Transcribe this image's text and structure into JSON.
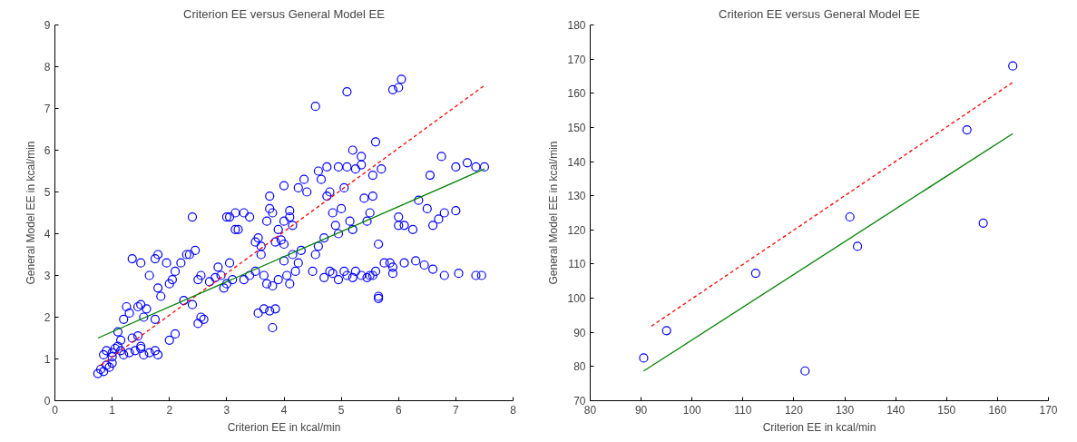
{
  "chart_data": [
    {
      "type": "scatter",
      "title": "Criterion EE versus General Model EE",
      "xlabel": "Criterion EE in kcal/min",
      "ylabel": "General Model EE in kcal/min",
      "xlim": [
        0,
        8
      ],
      "ylim": [
        0,
        9
      ],
      "xticks": [
        0,
        1,
        2,
        3,
        4,
        5,
        6,
        7,
        8
      ],
      "yticks": [
        0,
        1,
        2,
        3,
        4,
        5,
        6,
        7,
        8,
        9
      ],
      "grid": false,
      "series": [
        {
          "marker": "circle",
          "color": "#0000ff",
          "x": [
            0.75,
            0.8,
            0.85,
            0.9,
            0.95,
            1.0,
            0.85,
            0.9,
            1.0,
            1.05,
            1.1,
            1.15,
            1.2,
            1.3,
            1.4,
            1.5,
            1.55,
            1.65,
            1.8,
            1.75,
            1.35,
            1.45,
            1.5,
            1.1,
            1.15,
            1.0,
            1.2,
            1.25,
            1.3,
            1.45,
            1.5,
            1.6,
            1.55,
            1.35,
            1.5,
            1.65,
            1.75,
            1.8,
            1.8,
            1.85,
            1.75,
            1.95,
            2.0,
            2.05,
            2.1,
            2.2,
            2.3,
            2.35,
            2.45,
            2.4,
            2.0,
            2.1,
            2.25,
            2.4,
            2.5,
            2.55,
            2.6,
            2.5,
            2.55,
            2.7,
            2.8,
            2.9,
            2.95,
            3.0,
            3.05,
            3.1,
            2.85,
            3.0,
            3.05,
            3.15,
            3.2,
            3.15,
            3.3,
            3.4,
            3.5,
            3.6,
            3.55,
            3.6,
            3.7,
            3.75,
            3.8,
            3.75,
            3.9,
            3.85,
            3.95,
            4.0,
            3.55,
            3.65,
            3.75,
            3.85,
            3.8,
            3.4,
            3.3,
            3.5,
            3.65,
            3.7,
            3.8,
            3.9,
            4.0,
            4.05,
            4.1,
            4.2,
            4.25,
            4.15,
            4.0,
            4.1,
            4.1,
            4.15,
            4.0,
            4.25,
            4.35,
            4.4,
            4.3,
            4.55,
            4.5,
            4.55,
            4.6,
            4.7,
            4.65,
            4.6,
            4.75,
            4.75,
            4.8,
            4.85,
            4.9,
            4.95,
            4.95,
            5.0,
            5.1,
            5.05,
            5.1,
            5.15,
            5.2,
            5.2,
            5.25,
            5.35,
            5.35,
            5.4,
            5.5,
            5.45,
            5.55,
            5.55,
            5.6,
            5.7,
            5.65,
            5.75,
            5.6,
            4.7,
            4.8,
            4.85,
            4.95,
            5.05,
            5.1,
            5.2,
            5.25,
            5.35,
            5.45,
            5.5,
            5.55,
            5.65,
            5.65,
            5.85,
            5.9,
            6.1,
            6.45,
            6.6,
            6.8,
            7.05,
            7.35,
            7.45,
            5.9,
            6.0,
            6.05,
            6.0,
            6.1,
            6.0,
            6.35,
            6.25,
            6.5,
            6.6,
            6.55,
            6.7,
            6.8,
            6.75,
            7.0,
            7.2,
            7.35,
            7.5,
            7.0,
            6.3,
            5.9
          ],
          "values": [
            0.65,
            0.75,
            0.7,
            0.85,
            0.8,
            0.9,
            1.1,
            1.2,
            1.15,
            1.25,
            1.3,
            1.2,
            1.1,
            1.15,
            1.2,
            1.25,
            1.1,
            1.15,
            1.1,
            1.2,
            1.5,
            1.55,
            1.3,
            1.65,
            1.45,
            1.05,
            1.95,
            2.25,
            2.1,
            2.25,
            2.3,
            2.2,
            2.0,
            3.4,
            3.3,
            3.0,
            3.4,
            3.5,
            2.7,
            2.5,
            1.95,
            3.3,
            2.8,
            2.9,
            3.1,
            3.3,
            3.5,
            3.5,
            3.6,
            4.4,
            1.45,
            1.6,
            2.4,
            2.3,
            1.85,
            2.0,
            1.95,
            2.9,
            3.0,
            2.85,
            2.95,
            3.0,
            2.7,
            2.8,
            3.3,
            2.9,
            3.2,
            4.4,
            4.4,
            4.1,
            4.1,
            4.5,
            4.5,
            4.4,
            3.8,
            3.7,
            3.9,
            3.5,
            4.3,
            4.9,
            4.5,
            4.6,
            4.1,
            3.8,
            3.85,
            3.75,
            2.1,
            2.2,
            2.15,
            2.2,
            1.75,
            3.0,
            2.9,
            3.1,
            3.0,
            2.8,
            2.75,
            2.9,
            3.35,
            3.0,
            2.8,
            3.1,
            3.3,
            3.5,
            4.3,
            4.4,
            4.55,
            4.2,
            5.15,
            5.1,
            5.3,
            5.0,
            3.6,
            7.05,
            3.1,
            3.5,
            3.7,
            3.9,
            5.3,
            5.5,
            5.6,
            4.9,
            5.0,
            4.5,
            4.2,
            4.0,
            5.6,
            4.6,
            5.6,
            5.1,
            7.4,
            4.3,
            4.1,
            6.0,
            5.55,
            5.65,
            5.85,
            4.85,
            4.5,
            4.3,
            4.9,
            5.4,
            6.2,
            5.55,
            3.75,
            3.3,
            3.1,
            2.95,
            3.1,
            3.05,
            2.9,
            3.1,
            3.0,
            2.95,
            3.1,
            3.0,
            2.95,
            3.0,
            3.0,
            2.5,
            2.45,
            3.3,
            3.05,
            3.3,
            3.25,
            3.15,
            3.0,
            3.05,
            3.0,
            3.0,
            7.45,
            7.5,
            7.7,
            4.2,
            4.2,
            4.4,
            4.8,
            4.1,
            4.6,
            4.2,
            5.4,
            4.35,
            4.5,
            5.85,
            5.6,
            5.7,
            5.6,
            5.6,
            4.55,
            3.35,
            3.2
          ]
        },
        {
          "type": "line",
          "color": "#ff0000",
          "line_style": "dashed",
          "x": [
            0.8,
            7.5
          ],
          "values": [
            0.85,
            7.55
          ]
        },
        {
          "type": "line",
          "color": "#008000",
          "line_style": "solid",
          "x": [
            0.75,
            7.5
          ],
          "values": [
            1.5,
            5.55
          ]
        }
      ]
    },
    {
      "type": "scatter",
      "title": "Criterion EE versus General Model EE",
      "xlabel": "Criterion EE in kcal/min",
      "ylabel": "General Model EE in kcal/min",
      "xlim": [
        80,
        170
      ],
      "ylim": [
        70,
        180
      ],
      "xticks": [
        80,
        90,
        100,
        110,
        120,
        130,
        140,
        150,
        160,
        170
      ],
      "yticks": [
        70,
        80,
        90,
        100,
        110,
        120,
        130,
        140,
        150,
        160,
        170,
        180
      ],
      "grid": false,
      "series": [
        {
          "marker": "circle",
          "color": "#0000ff",
          "x": [
            90.5,
            95,
            112.5,
            122.2,
            131,
            132.5,
            154,
            157.2,
            163
          ],
          "values": [
            82.5,
            90.5,
            107.3,
            78.7,
            123.8,
            115.2,
            149.3,
            122,
            168
          ]
        },
        {
          "type": "line",
          "color": "#ff0000",
          "line_style": "dashed",
          "x": [
            92,
            163
          ],
          "values": [
            91.8,
            163.2
          ]
        },
        {
          "type": "line",
          "color": "#008000",
          "line_style": "solid",
          "x": [
            90.5,
            163
          ],
          "values": [
            78.7,
            148.2
          ]
        }
      ]
    }
  ]
}
